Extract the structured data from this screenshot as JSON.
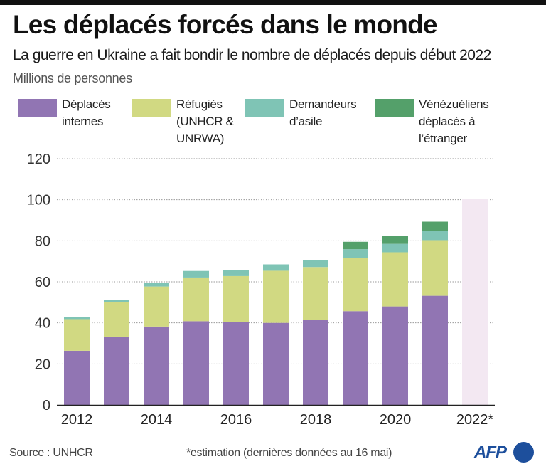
{
  "header": {
    "title": "Les déplacés forcés dans le monde",
    "subtitle": "La guerre en Ukraine a fait bondir le nombre de déplacés depuis début 2022",
    "unit": "Millions de personnes"
  },
  "legend": [
    {
      "label": "Déplacés\ninternes",
      "color": "#9175b3"
    },
    {
      "label": "Réfugiés\n(UNHCR &\nUNRWA)",
      "color": "#d1d982"
    },
    {
      "label": "Demandeurs\nd’asile",
      "color": "#7fc4b5"
    },
    {
      "label": "Vénézuéliens\ndéplacés à\nl’étranger",
      "color": "#54a06a"
    }
  ],
  "chart_data": {
    "type": "bar",
    "stacked": true,
    "title": "Les déplacés forcés dans le monde",
    "subtitle": "La guerre en Ukraine a fait bondir le nombre de déplacés depuis début 2022",
    "ylabel": "Millions de personnes",
    "xlabel": "",
    "ylim": [
      0,
      120
    ],
    "yticks": [
      0,
      20,
      40,
      60,
      80,
      100,
      120
    ],
    "grid": true,
    "legend_position": "top",
    "categories": [
      "2012",
      "2013",
      "2014",
      "2015",
      "2016",
      "2017",
      "2018",
      "2019",
      "2020",
      "2021",
      "2022*"
    ],
    "xtick_labels": [
      "2012",
      "",
      "2014",
      "",
      "2016",
      "",
      "2018",
      "",
      "2020",
      "",
      "2022*"
    ],
    "series": [
      {
        "name": "Déplacés internes",
        "color": "#9175b3",
        "values": [
          26.4,
          33.3,
          38.2,
          40.8,
          40.3,
          40.0,
          41.3,
          45.7,
          48.0,
          53.2,
          null
        ]
      },
      {
        "name": "Réfugiés (UNHCR & UNRWA)",
        "color": "#d1d982",
        "values": [
          15.4,
          16.7,
          19.5,
          21.3,
          22.5,
          25.4,
          25.9,
          26.0,
          26.4,
          27.1,
          null
        ]
      },
      {
        "name": "Demandeurs d’asile",
        "color": "#7fc4b5",
        "values": [
          0.9,
          1.2,
          1.8,
          3.2,
          2.8,
          3.1,
          3.5,
          4.2,
          4.1,
          4.6,
          null
        ]
      },
      {
        "name": "Vénézuéliens déplacés à l’étranger",
        "color": "#54a06a",
        "values": [
          0,
          0,
          0,
          0,
          0,
          0,
          0,
          3.6,
          3.9,
          4.4,
          null
        ]
      }
    ],
    "estimate": {
      "category": "2022*",
      "total": 100.5,
      "color": "#f3e8f2"
    },
    "annotations": [
      "*estimation (dernières données au 16 mai)"
    ]
  },
  "footer": {
    "source": "Source : UNHCR",
    "note": "*estimation (dernières données au 16 mai)",
    "logo": "AFP"
  },
  "colors": {
    "axis": "#222222",
    "grid": "#9a9a9a",
    "logo": "#1d4f9c"
  }
}
